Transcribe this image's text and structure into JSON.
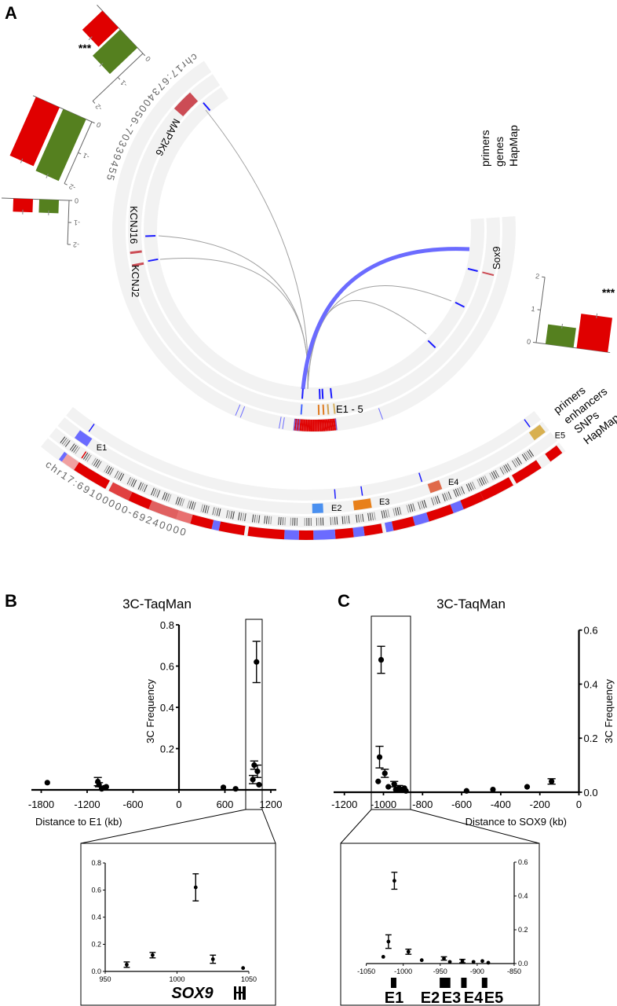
{
  "panel_labels": {
    "a": "A",
    "b": "B",
    "c": "C"
  },
  "panel_a": {
    "main_circle": {
      "chromosome_label": "chr17:67340056-70339455",
      "track_labels": [
        "primers",
        "genes",
        "HapMap"
      ],
      "genes": {
        "map2k6": "MAP2K6",
        "kcnj16": "KCNJ16",
        "kcnj2": "KCNJ2",
        "sox9": "Sox9"
      },
      "enhancer_label": "E1 - 5"
    },
    "zoom_arc": {
      "chromosome_label": "chr17:69100000-69240000",
      "track_labels": [
        "primers",
        "enhancers",
        "SNPs",
        "HapMap"
      ],
      "enhancers": [
        "E1",
        "E2",
        "E3",
        "E4",
        "E5"
      ]
    },
    "expression_bars": [
      {
        "values": {
          "red": -0.8,
          "green": -1.1
        },
        "ticks": [
          "0",
          "-1",
          "-2"
        ],
        "significance": "***"
      },
      {
        "values": {
          "red": -1.9,
          "green": -2.0
        },
        "ticks": [
          "0",
          "-1",
          "-2"
        ]
      },
      {
        "values": {
          "red": -0.6,
          "green": -0.6
        },
        "ticks": [
          "0",
          "-1",
          "-2"
        ]
      },
      {
        "values": {
          "red": 1.05,
          "green": 0.6
        },
        "ticks": [
          "0",
          "1",
          "2"
        ],
        "significance": "***"
      }
    ],
    "colors": {
      "red": "#e00000",
      "green": "#55801f",
      "primer": "#1a1aff",
      "link_blue": "#6b6bff",
      "link_grey": "#a0a0a0",
      "track_bg": "#f2f2f2",
      "gene": "#cc4c55"
    }
  },
  "chart_data": [
    {
      "id": "B_main",
      "type": "scatter",
      "title": "3C-TaqMan",
      "xlabel": "Distance to E1 (kb)",
      "ylabel": "3C Frequency",
      "xlim": [
        -1800,
        1200
      ],
      "ylim": [
        0,
        0.8
      ],
      "xticks": [
        -1800,
        -1200,
        -600,
        0,
        600,
        1200
      ],
      "yticks": [
        0.2,
        0.4,
        0.6,
        0.8
      ],
      "ytick_labels": [
        "0.2",
        "0.4",
        "0.6",
        "0.8"
      ],
      "highlight_range": [
        940,
        1080
      ],
      "points": [
        {
          "x": -1720,
          "y": 0.035
        },
        {
          "x": -1060,
          "y": 0.04,
          "err": 0.02
        },
        {
          "x": -1045,
          "y": 0.025,
          "err": 0.01
        },
        {
          "x": -1010,
          "y": 0.005
        },
        {
          "x": -980,
          "y": 0.01
        },
        {
          "x": -950,
          "y": 0.015
        },
        {
          "x": 580,
          "y": 0.012
        },
        {
          "x": 740,
          "y": 0.005
        },
        {
          "x": 965,
          "y": 0.05,
          "err": 0.02
        },
        {
          "x": 983,
          "y": 0.12,
          "err": 0.02
        },
        {
          "x": 1013,
          "y": 0.62,
          "err": 0.1
        },
        {
          "x": 1025,
          "y": 0.09,
          "err": 0.03
        },
        {
          "x": 1046,
          "y": 0.025
        }
      ]
    },
    {
      "id": "B_inset",
      "type": "scatter",
      "xlim": [
        950,
        1050
      ],
      "ylim": [
        0,
        0.8
      ],
      "xticks": [
        950,
        1000,
        1050
      ],
      "yticks": [
        0,
        0.2,
        0.4,
        0.6,
        0.8
      ],
      "ytick_labels": [
        "0.0",
        "0.2",
        "0.4",
        "0.6",
        "0.8"
      ],
      "gene_label": "SOX9",
      "points": [
        {
          "x": 965,
          "y": 0.05,
          "err": 0.02
        },
        {
          "x": 983,
          "y": 0.12,
          "err": 0.02
        },
        {
          "x": 1013,
          "y": 0.62,
          "err": 0.1
        },
        {
          "x": 1025,
          "y": 0.09,
          "err": 0.03
        },
        {
          "x": 1046,
          "y": 0.025
        }
      ]
    },
    {
      "id": "C_main",
      "type": "scatter",
      "title": "3C-TaqMan",
      "xlabel": "Distance to SOX9 (kb)",
      "ylabel": "3C Frequency",
      "xlim": [
        -1200,
        0
      ],
      "ylim": [
        0,
        0.6
      ],
      "xticks": [
        -1200,
        -1000,
        -800,
        -600,
        -400,
        -200,
        0
      ],
      "yticks": [
        0,
        0.2,
        0.4,
        0.6
      ],
      "ytick_labels": [
        "0.0",
        "0.2",
        "0.4",
        "0.6"
      ],
      "highlight_range": [
        -1080,
        -880
      ],
      "points": [
        {
          "x": -1027,
          "y": 0.04
        },
        {
          "x": -1020,
          "y": 0.13,
          "err": 0.04
        },
        {
          "x": -1012,
          "y": 0.49,
          "err": 0.05
        },
        {
          "x": -993,
          "y": 0.07,
          "err": 0.015
        },
        {
          "x": -975,
          "y": 0.02
        },
        {
          "x": -945,
          "y": 0.03,
          "err": 0.01
        },
        {
          "x": -937,
          "y": 0.01
        },
        {
          "x": -920,
          "y": 0.015,
          "err": 0.01
        },
        {
          "x": -905,
          "y": 0.01
        },
        {
          "x": -893,
          "y": 0.015
        },
        {
          "x": -885,
          "y": 0.005
        },
        {
          "x": -575,
          "y": 0.005
        },
        {
          "x": -440,
          "y": 0.01
        },
        {
          "x": -265,
          "y": 0.02
        },
        {
          "x": -140,
          "y": 0.04,
          "err": 0.01
        }
      ]
    },
    {
      "id": "C_inset",
      "type": "scatter",
      "xlim": [
        -1050,
        -850
      ],
      "ylim": [
        0,
        0.6
      ],
      "xticks": [
        -1050,
        -1000,
        -950,
        -900,
        -850
      ],
      "yticks": [
        0,
        0.2,
        0.4,
        0.6
      ],
      "ytick_labels": [
        "0.0",
        "0.2",
        "0.4",
        "0.6"
      ],
      "enhancers": [
        {
          "label": "E1",
          "x": -1013
        },
        {
          "label": "E2",
          "x": -947
        },
        {
          "label": "E3",
          "x": -940
        },
        {
          "label": "E4",
          "x": -918
        },
        {
          "label": "E5",
          "x": -890
        }
      ],
      "points": [
        {
          "x": -1027,
          "y": 0.04
        },
        {
          "x": -1020,
          "y": 0.13,
          "err": 0.04
        },
        {
          "x": -1012,
          "y": 0.49,
          "err": 0.05
        },
        {
          "x": -993,
          "y": 0.07,
          "err": 0.015
        },
        {
          "x": -975,
          "y": 0.02
        },
        {
          "x": -945,
          "y": 0.03,
          "err": 0.01
        },
        {
          "x": -937,
          "y": 0.01
        },
        {
          "x": -920,
          "y": 0.015,
          "err": 0.01
        },
        {
          "x": -905,
          "y": 0.01
        },
        {
          "x": -893,
          "y": 0.015
        },
        {
          "x": -885,
          "y": 0.005
        }
      ]
    }
  ]
}
